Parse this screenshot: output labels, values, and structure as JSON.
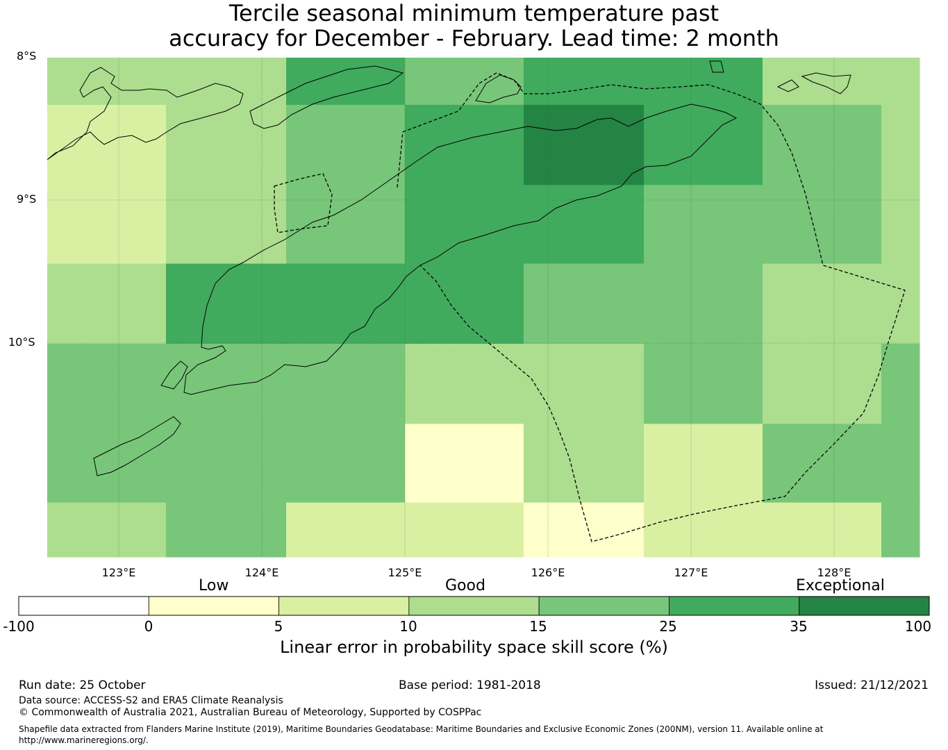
{
  "title": {
    "line1": "Tercile seasonal minimum temperature past",
    "line2": "accuracy for December - February. Lead time: 2 month"
  },
  "map": {
    "lat_labels": [
      "8°S",
      "9°S",
      "10°S"
    ],
    "lon_labels": [
      "123°E",
      "124°E",
      "125°E",
      "126°E",
      "127°E",
      "128°E"
    ],
    "grid_cells": [
      {
        "lon0": 122.0,
        "lon1": 123.33,
        "lat0": -8.0,
        "lat1": -8.33,
        "class": 3
      },
      {
        "lon0": 123.33,
        "lon1": 124.17,
        "lat0": -8.0,
        "lat1": -8.33,
        "class": 3
      },
      {
        "lon0": 124.17,
        "lon1": 125.0,
        "lat0": -8.0,
        "lat1": -8.33,
        "class": 5
      },
      {
        "lon0": 125.0,
        "lon1": 125.83,
        "lat0": -8.0,
        "lat1": -8.33,
        "class": 4
      },
      {
        "lon0": 125.83,
        "lon1": 126.67,
        "lat0": -8.0,
        "lat1": -8.33,
        "class": 5
      },
      {
        "lon0": 126.67,
        "lon1": 127.5,
        "lat0": -8.0,
        "lat1": -8.33,
        "class": 5
      },
      {
        "lon0": 127.5,
        "lon1": 128.33,
        "lat0": -8.0,
        "lat1": -8.33,
        "class": 3
      },
      {
        "lon0": 128.33,
        "lon1": 129.0,
        "lat0": -8.0,
        "lat1": -8.33,
        "class": 3
      },
      {
        "lon0": 122.0,
        "lon1": 123.33,
        "lat0": -8.33,
        "lat1": -8.89,
        "class": 2
      },
      {
        "lon0": 123.33,
        "lon1": 124.17,
        "lat0": -8.33,
        "lat1": -8.89,
        "class": 3
      },
      {
        "lon0": 124.17,
        "lon1": 125.0,
        "lat0": -8.33,
        "lat1": -8.89,
        "class": 4
      },
      {
        "lon0": 125.0,
        "lon1": 125.83,
        "lat0": -8.33,
        "lat1": -8.89,
        "class": 5
      },
      {
        "lon0": 125.83,
        "lon1": 126.67,
        "lat0": -8.33,
        "lat1": -8.89,
        "class": 6
      },
      {
        "lon0": 126.67,
        "lon1": 127.5,
        "lat0": -8.33,
        "lat1": -8.89,
        "class": 5
      },
      {
        "lon0": 127.5,
        "lon1": 128.33,
        "lat0": -8.33,
        "lat1": -8.89,
        "class": 4
      },
      {
        "lon0": 128.33,
        "lon1": 129.0,
        "lat0": -8.33,
        "lat1": -8.89,
        "class": 3
      },
      {
        "lon0": 122.0,
        "lon1": 123.33,
        "lat0": -8.89,
        "lat1": -9.44,
        "class": 2
      },
      {
        "lon0": 123.33,
        "lon1": 124.17,
        "lat0": -8.89,
        "lat1": -9.44,
        "class": 3
      },
      {
        "lon0": 124.17,
        "lon1": 125.0,
        "lat0": -8.89,
        "lat1": -9.44,
        "class": 4
      },
      {
        "lon0": 125.0,
        "lon1": 125.83,
        "lat0": -8.89,
        "lat1": -9.44,
        "class": 5
      },
      {
        "lon0": 125.83,
        "lon1": 126.67,
        "lat0": -8.89,
        "lat1": -9.44,
        "class": 5
      },
      {
        "lon0": 126.67,
        "lon1": 127.5,
        "lat0": -8.89,
        "lat1": -9.44,
        "class": 4
      },
      {
        "lon0": 127.5,
        "lon1": 128.33,
        "lat0": -8.89,
        "lat1": -9.44,
        "class": 4
      },
      {
        "lon0": 128.33,
        "lon1": 129.0,
        "lat0": -8.89,
        "lat1": -9.44,
        "class": 3
      },
      {
        "lon0": 122.0,
        "lon1": 123.33,
        "lat0": -9.44,
        "lat1": -10.0,
        "class": 3
      },
      {
        "lon0": 123.33,
        "lon1": 124.17,
        "lat0": -9.44,
        "lat1": -10.0,
        "class": 5
      },
      {
        "lon0": 124.17,
        "lon1": 125.0,
        "lat0": -9.44,
        "lat1": -10.0,
        "class": 5
      },
      {
        "lon0": 125.0,
        "lon1": 125.83,
        "lat0": -9.44,
        "lat1": -10.0,
        "class": 5
      },
      {
        "lon0": 125.83,
        "lon1": 126.67,
        "lat0": -9.44,
        "lat1": -10.0,
        "class": 4
      },
      {
        "lon0": 126.67,
        "lon1": 127.5,
        "lat0": -9.44,
        "lat1": -10.0,
        "class": 4
      },
      {
        "lon0": 127.5,
        "lon1": 128.33,
        "lat0": -9.44,
        "lat1": -10.0,
        "class": 3
      },
      {
        "lon0": 128.33,
        "lon1": 129.0,
        "lat0": -9.44,
        "lat1": -10.0,
        "class": 3
      },
      {
        "lon0": 122.0,
        "lon1": 123.33,
        "lat0": -10.0,
        "lat1": -10.56,
        "class": 4
      },
      {
        "lon0": 123.33,
        "lon1": 124.17,
        "lat0": -10.0,
        "lat1": -10.56,
        "class": 4
      },
      {
        "lon0": 124.17,
        "lon1": 125.0,
        "lat0": -10.0,
        "lat1": -10.56,
        "class": 4
      },
      {
        "lon0": 125.0,
        "lon1": 125.83,
        "lat0": -10.0,
        "lat1": -10.56,
        "class": 3
      },
      {
        "lon0": 125.83,
        "lon1": 126.67,
        "lat0": -10.0,
        "lat1": -10.56,
        "class": 3
      },
      {
        "lon0": 126.67,
        "lon1": 127.5,
        "lat0": -10.0,
        "lat1": -10.56,
        "class": 4
      },
      {
        "lon0": 127.5,
        "lon1": 128.33,
        "lat0": -10.0,
        "lat1": -10.56,
        "class": 3
      },
      {
        "lon0": 128.33,
        "lon1": 129.0,
        "lat0": -10.0,
        "lat1": -10.56,
        "class": 4
      },
      {
        "lon0": 122.0,
        "lon1": 123.33,
        "lat0": -10.56,
        "lat1": -11.11,
        "class": 4
      },
      {
        "lon0": 123.33,
        "lon1": 124.17,
        "lat0": -10.56,
        "lat1": -11.11,
        "class": 4
      },
      {
        "lon0": 124.17,
        "lon1": 125.0,
        "lat0": -10.56,
        "lat1": -11.11,
        "class": 4
      },
      {
        "lon0": 125.0,
        "lon1": 125.83,
        "lat0": -10.56,
        "lat1": -11.11,
        "class": 1
      },
      {
        "lon0": 125.83,
        "lon1": 126.67,
        "lat0": -10.56,
        "lat1": -11.11,
        "class": 3
      },
      {
        "lon0": 126.67,
        "lon1": 127.5,
        "lat0": -10.56,
        "lat1": -11.11,
        "class": 2
      },
      {
        "lon0": 127.5,
        "lon1": 128.33,
        "lat0": -10.56,
        "lat1": -11.11,
        "class": 4
      },
      {
        "lon0": 128.33,
        "lon1": 129.0,
        "lat0": -10.56,
        "lat1": -11.11,
        "class": 4
      },
      {
        "lon0": 122.0,
        "lon1": 123.33,
        "lat0": -11.11,
        "lat1": -11.5,
        "class": 3
      },
      {
        "lon0": 123.33,
        "lon1": 124.17,
        "lat0": -11.11,
        "lat1": -11.5,
        "class": 4
      },
      {
        "lon0": 124.17,
        "lon1": 125.0,
        "lat0": -11.11,
        "lat1": -11.5,
        "class": 2
      },
      {
        "lon0": 125.0,
        "lon1": 125.83,
        "lat0": -11.11,
        "lat1": -11.5,
        "class": 2
      },
      {
        "lon0": 125.83,
        "lon1": 126.67,
        "lat0": -11.11,
        "lat1": -11.5,
        "class": 1
      },
      {
        "lon0": 126.67,
        "lon1": 127.5,
        "lat0": -11.11,
        "lat1": -11.5,
        "class": 2
      },
      {
        "lon0": 127.5,
        "lon1": 128.33,
        "lat0": -11.11,
        "lat1": -11.5,
        "class": 2
      },
      {
        "lon0": 128.33,
        "lon1": 129.0,
        "lat0": -11.11,
        "lat1": -11.5,
        "class": 4
      }
    ]
  },
  "colorbar": {
    "colors": [
      "#ffffff",
      "#ffffcc",
      "#d9f0a3",
      "#addd8e",
      "#78c679",
      "#41ab5d",
      "#238443"
    ],
    "ticks": [
      "-100",
      "0",
      "5",
      "10",
      "15",
      "25",
      "35",
      "100"
    ],
    "category_labels": [
      "Low",
      "Good",
      "Exceptional"
    ],
    "title": "Linear error in probability space skill score (%)"
  },
  "footer": {
    "run_date": "Run date: 25 October",
    "base_period": "Base period: 1981-2018",
    "issued": "Issued: 21/12/2021",
    "data_source": "Data source: ACCESS-S2 and ERA5 Climate Reanalysis",
    "copyright": "© Commonwealth of Australia 2021, Australian Bureau of Meteorology, Supported by COSPPac",
    "shapefile_line1": "Shapefile data extracted from Flanders Marine Institute (2019), Maritime Boundaries Geodatabase: Maritime Boundaries and Exclusive Economic Zones (200NM), version 11. Available online at",
    "shapefile_line2": "http://www.marineregions.org/."
  }
}
